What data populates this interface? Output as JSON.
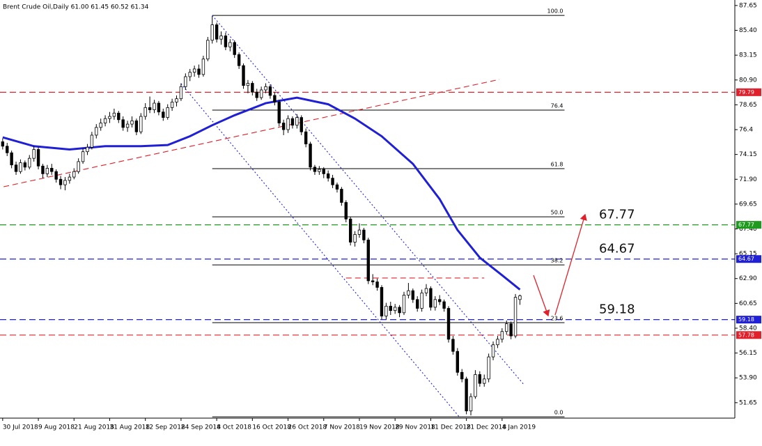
{
  "chart_data": {
    "type": "candlestick",
    "title": "Brent Crude Oil,Daily  61.00 61.45 60.52 61.34",
    "xlim": [
      -0.6,
      164.2
    ],
    "xticks": [
      {
        "value": 0,
        "label": "30 Jul 2018"
      },
      {
        "value": 8,
        "label": "9 Aug 2018"
      },
      {
        "value": 16,
        "label": "21 Aug 2018"
      },
      {
        "value": 24,
        "label": "31 Aug 2018"
      },
      {
        "value": 32,
        "label": "12 Sep 2018"
      },
      {
        "value": 40,
        "label": "24 Sep 2018"
      },
      {
        "value": 48,
        "label": "4 Oct 2018"
      },
      {
        "value": 56,
        "label": "16 Oct 2018"
      },
      {
        "value": 64,
        "label": "26 Oct 2018"
      },
      {
        "value": 72,
        "label": "7 Nov 2018"
      },
      {
        "value": 80,
        "label": "19 Nov 2018"
      },
      {
        "value": 88,
        "label": "29 Nov 2018"
      },
      {
        "value": 96,
        "label": "11 Dec 2018"
      },
      {
        "value": 104,
        "label": "21 Dec 2018"
      },
      {
        "value": 112,
        "label": "4 Jan 2019"
      }
    ],
    "ylim": [
      50.25,
      88.15
    ],
    "yticks": [
      87.65,
      {
        "value": 85.4,
        "label": "85.40"
      },
      83.15,
      {
        "value": 80.9,
        "label": "80.90"
      },
      78.65,
      76.4,
      74.15,
      {
        "value": 71.9,
        "label": "71.90"
      },
      69.65,
      {
        "value": 67.4,
        "label": "67.40"
      },
      65.15,
      {
        "value": 62.9,
        "label": "62.90"
      },
      60.65,
      {
        "value": 58.4,
        "label": "58.40"
      },
      56.15,
      {
        "value": 53.9,
        "label": "53.90"
      },
      51.65
    ],
    "open": [
      75.3,
      74.9,
      74.3,
      73.2,
      72.6,
      73.4,
      73.0,
      73.8,
      74.6,
      73.1,
      72.4,
      72.9,
      72.6,
      71.9,
      71.4,
      71.8,
      72.1,
      72.6,
      73.5,
      74.4,
      74.8,
      75.9,
      76.6,
      77.0,
      77.4,
      77.6,
      77.9,
      77.3,
      76.6,
      76.9,
      77.2,
      76.2,
      77.6,
      78.4,
      78.2,
      78.8,
      78.0,
      77.5,
      78.4,
      78.9,
      79.2,
      80.3,
      81.2,
      81.6,
      81.9,
      81.4,
      82.8,
      84.5,
      85.9,
      84.6,
      84.9,
      83.9,
      84.3,
      83.2,
      82.2,
      80.4,
      80.6,
      79.8,
      79.3,
      80.0,
      80.3,
      79.5,
      78.9,
      77.0,
      76.4,
      77.4,
      76.8,
      77.5,
      76.2,
      75.1,
      73.0,
      72.6,
      72.8,
      72.4,
      72.0,
      71.4,
      71.0,
      69.8,
      68.3,
      66.2,
      66.9,
      67.3,
      66.4,
      62.7,
      62.6,
      62.1,
      59.5,
      60.4,
      60.0,
      60.3,
      59.8,
      61.4,
      61.8,
      61.0,
      60.2,
      61.6,
      62.0,
      60.3,
      61.0,
      60.8,
      60.2,
      57.4,
      56.3,
      54.4,
      53.8,
      50.9,
      52.2,
      54.2,
      53.4,
      53.8,
      55.8,
      56.9,
      57.4,
      58.1,
      58.8,
      57.7,
      61.0
    ],
    "high": [
      75.6,
      75.2,
      74.5,
      73.5,
      73.7,
      73.6,
      74.1,
      74.9,
      74.8,
      73.3,
      73.2,
      73.3,
      72.8,
      72.2,
      72.1,
      72.4,
      72.9,
      73.8,
      74.7,
      75.1,
      76.2,
      76.9,
      77.4,
      77.7,
      78.0,
      78.3,
      78.1,
      77.6,
      77.2,
      77.6,
      77.4,
      77.9,
      78.8,
      79.4,
      79.1,
      79.0,
      78.3,
      78.7,
      79.2,
      79.5,
      80.6,
      81.5,
      81.9,
      82.2,
      82.3,
      83.1,
      84.8,
      86.7,
      86.1,
      85.3,
      85.2,
      84.6,
      84.5,
      83.4,
      82.4,
      80.9,
      80.8,
      80.1,
      80.3,
      80.6,
      80.5,
      79.8,
      79.1,
      77.3,
      77.7,
      77.6,
      77.8,
      77.7,
      76.5,
      75.3,
      73.2,
      73.1,
      73.0,
      72.7,
      72.3,
      71.6,
      71.2,
      70.0,
      68.5,
      67.2,
      67.9,
      67.5,
      66.6,
      63.3,
      62.9,
      62.3,
      60.7,
      60.8,
      60.6,
      60.5,
      61.7,
      62.5,
      62.0,
      61.3,
      61.9,
      62.4,
      62.2,
      61.3,
      61.4,
      61.0,
      60.4,
      57.7,
      56.6,
      54.7,
      54.0,
      52.5,
      54.6,
      54.5,
      54.2,
      56.1,
      57.2,
      57.7,
      58.4,
      59.1,
      59.0,
      61.5,
      61.45
    ],
    "low": [
      74.6,
      74.0,
      72.9,
      72.3,
      72.4,
      72.7,
      72.8,
      73.5,
      72.8,
      72.0,
      72.1,
      72.3,
      71.6,
      71.0,
      70.9,
      71.5,
      71.9,
      72.4,
      73.3,
      74.1,
      74.6,
      75.6,
      76.3,
      76.7,
      77.0,
      77.3,
      77.0,
      76.3,
      76.2,
      76.6,
      75.9,
      76.0,
      77.3,
      77.9,
      77.9,
      77.7,
      77.2,
      77.3,
      78.1,
      78.5,
      79.0,
      80.0,
      80.8,
      81.2,
      81.1,
      81.2,
      82.6,
      84.2,
      84.3,
      84.1,
      83.6,
      83.5,
      82.9,
      81.9,
      80.1,
      79.7,
      79.5,
      79.0,
      79.1,
      79.7,
      79.2,
      78.6,
      76.7,
      75.9,
      76.1,
      76.5,
      76.5,
      75.9,
      74.8,
      72.7,
      72.3,
      72.3,
      72.0,
      71.7,
      71.1,
      70.7,
      69.5,
      68.0,
      65.9,
      65.8,
      66.6,
      66.1,
      62.4,
      62.3,
      61.8,
      59.2,
      59.2,
      59.6,
      59.7,
      59.4,
      59.6,
      61.1,
      60.7,
      59.9,
      59.9,
      61.3,
      60.0,
      60.0,
      60.5,
      59.9,
      57.1,
      56.0,
      54.1,
      53.5,
      50.6,
      50.5,
      52.0,
      53.1,
      53.1,
      53.5,
      55.5,
      56.6,
      57.1,
      57.8,
      57.4,
      57.5,
      60.52
    ],
    "close": [
      74.9,
      74.3,
      73.2,
      72.6,
      73.4,
      73.0,
      73.8,
      74.6,
      73.1,
      72.4,
      72.9,
      72.6,
      71.9,
      71.4,
      71.8,
      72.1,
      72.6,
      73.5,
      74.4,
      74.8,
      75.9,
      76.6,
      77.0,
      77.4,
      77.6,
      77.9,
      77.3,
      76.6,
      76.9,
      77.2,
      76.2,
      77.6,
      78.4,
      78.2,
      78.8,
      78.0,
      77.5,
      78.4,
      78.9,
      79.2,
      80.3,
      81.2,
      81.6,
      81.9,
      81.4,
      82.8,
      84.5,
      85.9,
      84.6,
      84.9,
      83.9,
      84.3,
      83.2,
      82.2,
      80.4,
      80.6,
      79.8,
      79.3,
      80.0,
      80.3,
      79.5,
      78.9,
      77.0,
      76.4,
      77.4,
      76.8,
      77.5,
      76.2,
      75.1,
      73.0,
      72.6,
      72.8,
      72.4,
      72.0,
      71.4,
      71.0,
      69.8,
      68.3,
      66.2,
      66.9,
      67.3,
      66.4,
      62.7,
      62.6,
      62.1,
      59.5,
      60.4,
      60.0,
      60.3,
      59.8,
      61.4,
      61.8,
      61.0,
      60.2,
      61.6,
      62.0,
      60.3,
      61.0,
      60.8,
      60.2,
      57.4,
      56.3,
      54.4,
      53.8,
      50.9,
      52.2,
      54.2,
      53.4,
      53.8,
      55.8,
      56.9,
      57.4,
      58.1,
      58.8,
      57.7,
      61.2,
      61.34
    ],
    "moving_average": {
      "color": "#1f1fd6",
      "x": [
        0,
        7,
        15,
        23,
        31,
        37,
        42,
        47,
        52,
        59,
        66,
        73,
        79,
        85,
        92,
        98,
        102,
        107,
        112,
        116
      ],
      "values": [
        75.7,
        74.9,
        74.6,
        74.9,
        74.9,
        75.0,
        75.8,
        76.8,
        77.7,
        78.8,
        79.3,
        78.7,
        77.4,
        75.8,
        73.3,
        70.1,
        67.3,
        64.8,
        63.2,
        61.9
      ]
    },
    "levels": [
      {
        "value": 79.79,
        "color": "#e0202a",
        "callout": false
      },
      {
        "value": 67.77,
        "color": "#1e9a1e",
        "callout": true
      },
      {
        "value": 64.67,
        "color": "#2020d8",
        "callout": true
      },
      {
        "value": 59.18,
        "color": "#2020d8",
        "callout": true
      },
      {
        "value": 57.78,
        "color": "#e0202a",
        "callout": false
      }
    ],
    "fibonacci": {
      "x": [
        47,
        126
      ],
      "levels": [
        {
          "label": "100.0",
          "value": 86.75
        },
        {
          "label": "76.4",
          "value": 78.17
        },
        {
          "label": "61.8",
          "value": 72.86
        },
        {
          "label": "50.0",
          "value": 68.5
        },
        {
          "label": "38.2",
          "value": 64.14
        },
        {
          "label": "23.6",
          "value": 58.9
        },
        {
          "label": "0.0",
          "value": 50.37
        }
      ]
    },
    "trendlines": [
      {
        "color": "#e0202a",
        "style": "dashed",
        "x": [
          0.2,
          111.4
        ],
        "values": [
          71.22,
          80.95
        ]
      },
      {
        "color": "#2020d8",
        "style": "dotted",
        "x": [
          47,
          116.9
        ],
        "values": [
          86.76,
          53.28
        ]
      },
      {
        "color": "#2020d8",
        "style": "dotted",
        "x": [
          40,
          103.3
        ],
        "values": [
          80.57,
          49.93
        ]
      },
      {
        "color": "#e0202a",
        "style": "dashed",
        "x": [
          77,
          108
        ],
        "values": [
          62.95,
          62.95
        ]
      }
    ]
  }
}
